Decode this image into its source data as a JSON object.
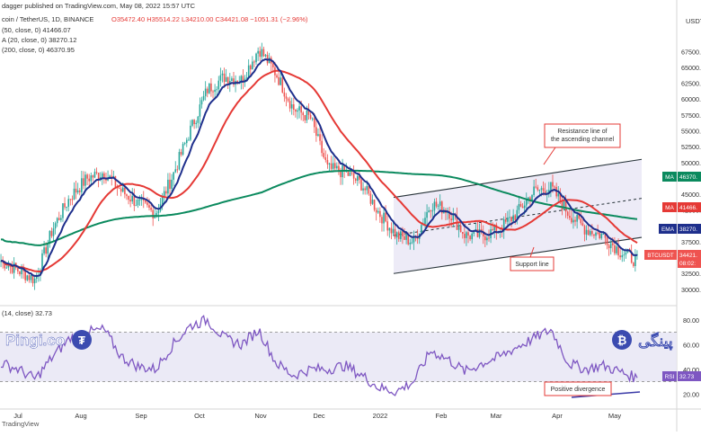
{
  "header": {
    "published": "dagger published on TradingView.com, May 08, 2022 15:57 UTC",
    "symbol": "coin / TetherUS, 1D, BINANCE",
    "ohlc": "O35472.40 H35514.22 L34210.00 C34421.08 −1051.31 (−2.96%)",
    "ind_ma50": "(50, close, 0)  41466.07",
    "ind_ema20": "A (20, close, 0)  38270.12",
    "ind_ma200": "(200, close, 0)  46370.95"
  },
  "currency_tag": "USDT",
  "axis": {
    "price_ticks": [
      30000,
      32500,
      35000,
      37500,
      40000,
      42500,
      45000,
      47500,
      50000,
      52500,
      55000,
      57500,
      60000,
      62500,
      65000,
      67500
    ],
    "rsi_ticks": [
      20,
      40,
      60,
      80
    ],
    "months": [
      "Jul",
      "Aug",
      "Sep",
      "Oct",
      "Nov",
      "Dec",
      "2022",
      "Feb",
      "Mar",
      "Apr",
      "May"
    ]
  },
  "badges": {
    "ma200_label": "MA",
    "ma200_value": "46370.",
    "ma50_label": "MA",
    "ma50_value": "41466.",
    "ema_label": "EMA",
    "ema_value": "38270.",
    "price_symbol": "BTCUSDT",
    "price_value": "34421.",
    "countdown": "08:02:",
    "rsi_label": "RSI",
    "rsi_value": "32.73"
  },
  "annotations": {
    "resistance": "Resistance line of the ascending channel",
    "support": "Support line",
    "divergence": "Positive divergence"
  },
  "rsi_header": "(14, close)  32.73",
  "watermark_left": "Pingi.co",
  "watermark_right": "پینگی",
  "footer": "TradingView",
  "colors": {
    "up": "#26a69a",
    "down": "#ef5350",
    "ema": "#1e2f8c",
    "ma50": "#e53935",
    "ma200": "#0b8a5e",
    "rsi": "#7e57c2",
    "channel": "#263238",
    "band": "#e8e6f5"
  },
  "chart_data": {
    "type": "candlestick",
    "title": "coin / TetherUS, 1D, BINANCE",
    "x": [
      "Jul",
      "Aug",
      "Sep",
      "Oct",
      "Nov",
      "Dec",
      "2022",
      "Feb",
      "Mar",
      "Apr",
      "May"
    ],
    "ylim": [
      28000,
      72500
    ],
    "close_series": [
      [
        "Jul",
        34500
      ],
      [
        "",
        33000
      ],
      [
        "",
        31500
      ],
      [
        "Aug",
        39500
      ],
      [
        "",
        44500
      ],
      [
        "",
        47500
      ],
      [
        "Sep",
        48500
      ],
      [
        "",
        45500
      ],
      [
        "",
        43500
      ],
      [
        "",
        42000
      ],
      [
        "Oct",
        48000
      ],
      [
        "",
        55000
      ],
      [
        "",
        61500
      ],
      [
        "",
        63500
      ],
      [
        "Nov",
        63000
      ],
      [
        "",
        68000
      ],
      [
        "",
        64000
      ],
      [
        "",
        58500
      ],
      [
        "Dec",
        57000
      ],
      [
        "",
        49000
      ],
      [
        "",
        48500
      ],
      [
        "2022",
        46500
      ],
      [
        "",
        42000
      ],
      [
        "",
        38500
      ],
      [
        "Feb",
        37500
      ],
      [
        "",
        43500
      ],
      [
        "",
        42500
      ],
      [
        "",
        38500
      ],
      [
        "Mar",
        38500
      ],
      [
        "",
        39500
      ],
      [
        "",
        42000
      ],
      [
        "",
        45500
      ],
      [
        "Apr",
        46000
      ],
      [
        "",
        42000
      ],
      [
        "",
        39500
      ],
      [
        "",
        38500
      ],
      [
        "May",
        36000
      ],
      [
        "",
        34421
      ]
    ],
    "series": [
      {
        "name": "EMA (20, close, 0)",
        "last": 38270.12
      },
      {
        "name": "MA (50, close, 0)",
        "last": 41466.07
      },
      {
        "name": "MA (200, close, 0)",
        "last": 46370.95
      }
    ],
    "rsi": {
      "name": "RSI (14, close)",
      "last": 32.73,
      "ylim": [
        10,
        90
      ],
      "levels": [
        30,
        70
      ],
      "values": [
        45,
        40,
        32,
        50,
        65,
        70,
        72,
        50,
        42,
        40,
        60,
        75,
        80,
        65,
        60,
        72,
        45,
        35,
        40,
        40,
        43,
        35,
        25,
        22,
        30,
        55,
        48,
        38,
        45,
        50,
        58,
        65,
        72,
        45,
        40,
        43,
        38,
        32.73
      ]
    },
    "channel": {
      "resistance": [
        [
          0,
          44500
        ],
        [
          37,
          50500
        ]
      ],
      "support": [
        [
          0,
          32500
        ],
        [
          37,
          38200
        ]
      ]
    }
  }
}
